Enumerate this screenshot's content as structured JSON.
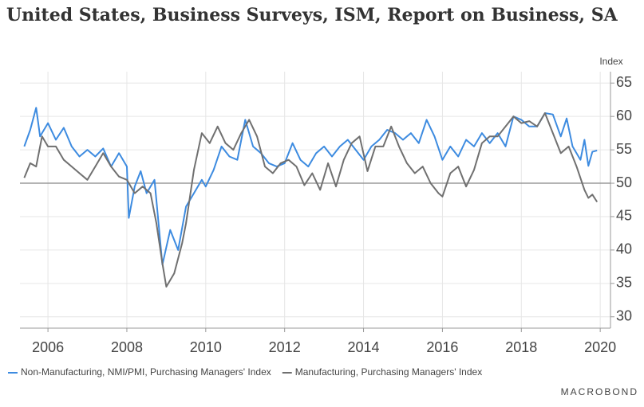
{
  "chart_data": {
    "type": "line",
    "title": "United States, Business Surveys, ISM, Report on Business, SA",
    "y_axis_label": "Index",
    "logo": "MACROBOND",
    "xlim": [
      2005.29,
      2020.26
    ],
    "xticks": [
      2006,
      2008,
      2010,
      2012,
      2014,
      2016,
      2018,
      2020
    ],
    "ylim": [
      28.3,
      66.7
    ],
    "yticks": [
      30,
      35,
      40,
      45,
      50,
      55,
      60,
      65
    ],
    "reference_line": 50,
    "grid": true,
    "legend": "bottom",
    "series": [
      {
        "name": "Non-Manufacturing, NMI/PMI, Purchasing Managers' Index",
        "color": "#3d8be0",
        "x": [
          2005.4,
          2005.55,
          2005.7,
          2005.8,
          2006.0,
          2006.2,
          2006.4,
          2006.6,
          2006.8,
          2007.0,
          2007.2,
          2007.4,
          2007.6,
          2007.8,
          2008.0,
          2008.05,
          2008.2,
          2008.35,
          2008.5,
          2008.7,
          2008.9,
          2009.1,
          2009.3,
          2009.5,
          2009.7,
          2009.9,
          2010.0,
          2010.2,
          2010.4,
          2010.6,
          2010.8,
          2011.0,
          2011.2,
          2011.4,
          2011.6,
          2011.8,
          2012.0,
          2012.2,
          2012.4,
          2012.6,
          2012.8,
          2013.0,
          2013.2,
          2013.4,
          2013.6,
          2013.8,
          2014.0,
          2014.2,
          2014.4,
          2014.6,
          2014.8,
          2015.0,
          2015.2,
          2015.4,
          2015.6,
          2015.8,
          2016.0,
          2016.2,
          2016.4,
          2016.6,
          2016.8,
          2017.0,
          2017.2,
          2017.4,
          2017.6,
          2017.8,
          2018.0,
          2018.2,
          2018.4,
          2018.6,
          2018.8,
          2019.0,
          2019.15,
          2019.3,
          2019.5,
          2019.6,
          2019.7,
          2019.8,
          2019.92
        ],
        "values": [
          55.5,
          58,
          61.3,
          57,
          59,
          56.5,
          58.3,
          55.5,
          54,
          55,
          54,
          55.2,
          52.5,
          54.5,
          52.5,
          44.8,
          49.5,
          51.8,
          48.5,
          50.5,
          37.8,
          43,
          40,
          46.5,
          48.5,
          50.5,
          49.5,
          52,
          55.5,
          54,
          53.5,
          59.5,
          55.5,
          54.5,
          53,
          52.5,
          53,
          56,
          53.5,
          52.5,
          54.5,
          55.5,
          54,
          55.5,
          56.5,
          55,
          53.5,
          55.5,
          56.5,
          58,
          57.5,
          56.5,
          57.5,
          56,
          59.5,
          57,
          53.5,
          55.5,
          54,
          56.5,
          55.5,
          57.5,
          56,
          57.5,
          55.5,
          60,
          59.5,
          58.5,
          58.5,
          60.5,
          60.3,
          57,
          59.7,
          55.5,
          53.5,
          56.5,
          52.6,
          54.7,
          54.9
        ]
      },
      {
        "name": "Manufacturing, Purchasing Managers' Index",
        "color": "#707070",
        "x": [
          2005.4,
          2005.55,
          2005.7,
          2005.85,
          2006.0,
          2006.2,
          2006.4,
          2006.6,
          2006.8,
          2007.0,
          2007.2,
          2007.4,
          2007.6,
          2007.8,
          2008.0,
          2008.2,
          2008.4,
          2008.6,
          2008.75,
          2008.9,
          2009.0,
          2009.2,
          2009.4,
          2009.5,
          2009.7,
          2009.9,
          2010.1,
          2010.3,
          2010.5,
          2010.7,
          2010.9,
          2011.1,
          2011.3,
          2011.5,
          2011.7,
          2011.9,
          2012.1,
          2012.3,
          2012.5,
          2012.7,
          2012.9,
          2013.1,
          2013.3,
          2013.5,
          2013.7,
          2013.9,
          2014.1,
          2014.3,
          2014.5,
          2014.7,
          2014.9,
          2015.1,
          2015.3,
          2015.5,
          2015.7,
          2015.9,
          2016.0,
          2016.2,
          2016.4,
          2016.6,
          2016.8,
          2017.0,
          2017.2,
          2017.4,
          2017.6,
          2017.8,
          2018.0,
          2018.2,
          2018.4,
          2018.6,
          2018.8,
          2019.0,
          2019.2,
          2019.4,
          2019.6,
          2019.7,
          2019.8,
          2019.92
        ],
        "values": [
          50.8,
          53,
          52.5,
          57,
          55.5,
          55.5,
          53.5,
          52.5,
          51.5,
          50.5,
          52.5,
          54.5,
          52.5,
          51,
          50.5,
          48.5,
          49.5,
          48.5,
          44,
          38,
          34.5,
          36.5,
          41,
          44,
          52,
          57.5,
          56,
          58.5,
          56,
          55,
          57.5,
          59.5,
          57,
          52.5,
          51.5,
          53,
          53.5,
          52.5,
          49.7,
          51.5,
          49,
          53,
          49.5,
          53.5,
          56,
          57,
          51.8,
          55.5,
          55.5,
          58.5,
          55.5,
          53,
          51.5,
          52.5,
          50,
          48.5,
          48,
          51.5,
          52.5,
          49.5,
          52,
          56,
          57,
          57,
          58.5,
          60,
          59,
          59.3,
          58.5,
          60.5,
          57.5,
          54.5,
          55.5,
          52.5,
          49,
          47.8,
          48.3,
          47.2
        ]
      }
    ]
  }
}
